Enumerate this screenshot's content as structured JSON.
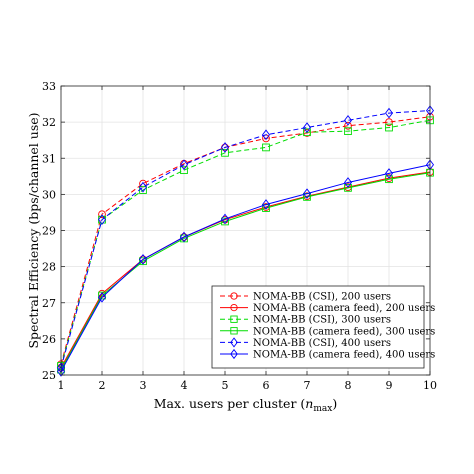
{
  "chart_data": {
    "type": "line",
    "xlabel": "Max. users per cluster (",
    "xlabel_math": "n",
    "xlabel_sub": "max",
    "xlabel_close": ")",
    "ylabel": "Spectral Efficiency (bps/channel use)",
    "x": [
      1,
      2,
      3,
      4,
      5,
      6,
      7,
      8,
      9,
      10
    ],
    "xlim": [
      1,
      10
    ],
    "ylim": [
      25,
      33
    ],
    "xticks": [
      1,
      2,
      3,
      4,
      5,
      6,
      7,
      8,
      9,
      10
    ],
    "yticks": [
      25,
      26,
      27,
      28,
      29,
      30,
      31,
      32,
      33
    ],
    "grid": true,
    "legend_position": "bottom-right",
    "series": [
      {
        "name": "NOMA-BB (CSI), 200 users",
        "color": "#ff0000",
        "dash": "dashed",
        "marker": "circle",
        "values": [
          25.3,
          29.45,
          30.3,
          30.85,
          31.3,
          31.55,
          31.7,
          31.9,
          32.0,
          32.15
        ]
      },
      {
        "name": "NOMA-BB (camera feed), 200 users",
        "color": "#ff0000",
        "dash": "solid",
        "marker": "circle",
        "values": [
          25.2,
          27.25,
          28.2,
          28.82,
          29.3,
          29.65,
          29.95,
          30.2,
          30.45,
          30.62
        ]
      },
      {
        "name": "NOMA-BB (CSI), 300 users",
        "color": "#00dd00",
        "dash": "dashed",
        "marker": "square",
        "values": [
          25.25,
          29.3,
          30.12,
          30.67,
          31.15,
          31.3,
          31.72,
          31.75,
          31.85,
          32.05
        ]
      },
      {
        "name": "NOMA-BB (camera feed), 300 users",
        "color": "#00dd00",
        "dash": "solid",
        "marker": "square",
        "values": [
          25.15,
          27.2,
          28.15,
          28.78,
          29.25,
          29.62,
          29.93,
          30.18,
          30.42,
          30.6
        ]
      },
      {
        "name": "NOMA-BB (CSI), 400 users",
        "color": "#0000ff",
        "dash": "dashed",
        "marker": "diamond",
        "values": [
          25.2,
          29.3,
          30.2,
          30.82,
          31.3,
          31.65,
          31.85,
          32.05,
          32.25,
          32.32
        ]
      },
      {
        "name": "NOMA-BB (camera feed), 400 users",
        "color": "#0000ff",
        "dash": "solid",
        "marker": "diamond",
        "values": [
          25.1,
          27.15,
          28.2,
          28.82,
          29.32,
          29.72,
          30.02,
          30.33,
          30.58,
          30.82
        ]
      }
    ]
  }
}
